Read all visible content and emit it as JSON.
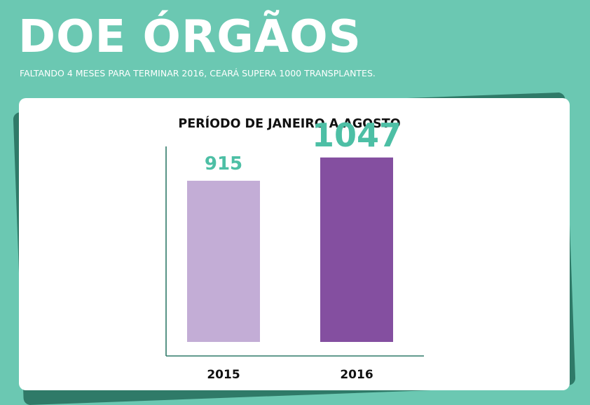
{
  "header": {
    "title": "DOE ÓRGÃOS",
    "subtitle": "FALTANDO 4 MESES PARA TERMINAR 2016, CEARÁ SUPERA 1000 TRANSPLANTES."
  },
  "colors": {
    "background": "#6bc8b2",
    "card": "#ffffff",
    "card_shadow": "#2f7a68",
    "axis": "#2f7a68",
    "value_label": "#4dbfa5",
    "category_label": "#111111"
  },
  "chart_data": {
    "type": "bar",
    "title": "PERÍODO DE JANEIRO A AGOSTO",
    "xlabel": "",
    "ylabel": "",
    "categories": [
      "2015",
      "2016"
    ],
    "values": [
      915,
      1047
    ],
    "value_labels": [
      "915",
      "1047"
    ],
    "bar_colors": [
      "#c3add6",
      "#844fa0"
    ],
    "ylim": [
      0,
      1400
    ],
    "grid": false,
    "legend": "none"
  }
}
